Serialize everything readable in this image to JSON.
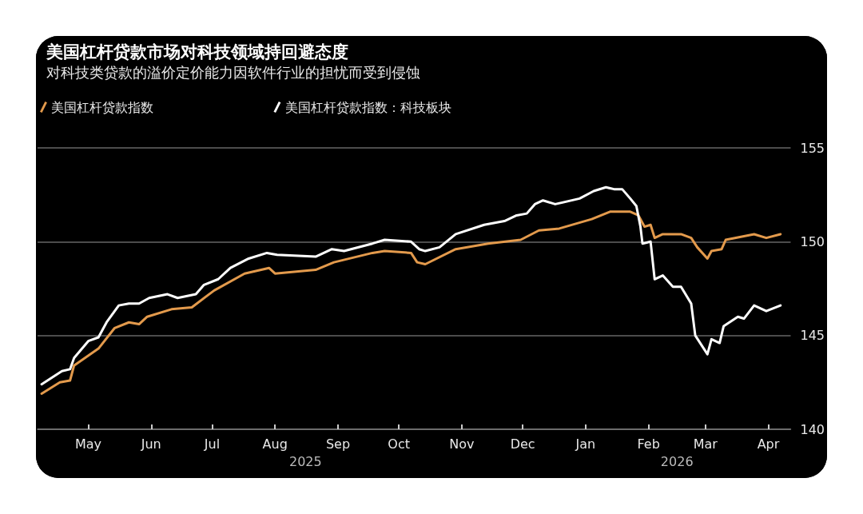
{
  "chart_data": {
    "type": "line",
    "title": "美国杠杆贷款市场对科技领域持回避态度",
    "subtitle": "对科技类贷款的溢价定价能力因软件行业的担忧而受到侵蚀",
    "series": [
      {
        "name": "美国杠杆贷款指数",
        "color": "#e39a4c",
        "x": [
          "2025-04-08",
          "2025-04-17",
          "2025-04-22",
          "2025-04-24",
          "2025-05-06",
          "2025-05-14",
          "2025-05-21",
          "2025-05-26",
          "2025-05-30",
          "2025-06-11",
          "2025-06-21",
          "2025-07-02",
          "2025-07-17",
          "2025-07-29",
          "2025-08-01",
          "2025-08-21",
          "2025-08-30",
          "2025-09-18",
          "2025-09-24",
          "2025-10-07",
          "2025-10-10",
          "2025-10-14",
          "2025-10-29",
          "2025-11-14",
          "2025-11-30",
          "2025-12-09",
          "2025-12-19",
          "2026-01-04",
          "2026-01-13",
          "2026-01-23",
          "2026-01-27",
          "2026-01-30",
          "2026-02-02",
          "2026-02-04",
          "2026-02-08",
          "2026-02-17",
          "2026-02-22",
          "2026-02-25",
          "2026-03-02",
          "2026-03-04",
          "2026-03-09",
          "2026-03-11",
          "2026-03-25",
          "2026-03-31",
          "2026-04-07"
        ],
        "values": [
          141.9,
          142.5,
          142.6,
          143.4,
          144.3,
          145.4,
          145.7,
          145.6,
          146.0,
          146.4,
          146.5,
          147.4,
          148.3,
          148.6,
          148.3,
          148.5,
          148.9,
          149.4,
          149.5,
          149.4,
          148.9,
          148.8,
          149.6,
          149.9,
          150.1,
          150.6,
          150.7,
          151.2,
          151.6,
          151.6,
          151.4,
          150.8,
          150.9,
          150.2,
          150.4,
          150.4,
          150.2,
          149.7,
          149.1,
          149.5,
          149.6,
          150.1,
          150.4,
          150.2,
          150.4
        ]
      },
      {
        "name": "美国杠杆贷款指数：科技板块",
        "color": "#ffffff",
        "x": [
          "2025-04-08",
          "2025-04-18",
          "2025-04-22",
          "2025-04-24",
          "2025-05-01",
          "2025-05-06",
          "2025-05-10",
          "2025-05-16",
          "2025-05-21",
          "2025-05-26",
          "2025-05-31",
          "2025-06-09",
          "2025-06-14",
          "2025-06-23",
          "2025-06-27",
          "2025-07-04",
          "2025-07-10",
          "2025-07-19",
          "2025-07-28",
          "2025-08-02",
          "2025-08-21",
          "2025-08-29",
          "2025-09-04",
          "2025-09-18",
          "2025-09-24",
          "2025-10-07",
          "2025-10-11",
          "2025-10-14",
          "2025-10-21",
          "2025-10-29",
          "2025-11-12",
          "2025-11-22",
          "2025-11-28",
          "2025-12-03",
          "2025-12-07",
          "2025-12-11",
          "2025-12-17",
          "2025-12-29",
          "2026-01-05",
          "2026-01-11",
          "2026-01-15",
          "2026-01-19",
          "2026-01-23",
          "2026-01-26",
          "2026-01-28",
          "2026-01-29",
          "2026-02-02",
          "2026-02-04",
          "2026-02-08",
          "2026-02-13",
          "2026-02-17",
          "2026-02-22",
          "2026-02-24",
          "2026-03-02",
          "2026-03-04",
          "2026-03-08",
          "2026-03-10",
          "2026-03-17",
          "2026-03-20",
          "2026-03-25",
          "2026-03-31",
          "2026-04-07"
        ],
        "values": [
          142.4,
          143.1,
          143.2,
          143.8,
          144.7,
          144.9,
          145.7,
          146.6,
          146.7,
          146.7,
          147.0,
          147.2,
          147.0,
          147.2,
          147.7,
          148.0,
          148.6,
          149.1,
          149.4,
          149.3,
          149.2,
          149.6,
          149.5,
          149.9,
          150.1,
          150.0,
          149.6,
          149.5,
          149.7,
          150.4,
          150.9,
          151.1,
          151.4,
          151.5,
          152.0,
          152.2,
          152.0,
          152.3,
          152.7,
          152.9,
          152.8,
          152.8,
          152.3,
          151.9,
          150.8,
          149.9,
          150.0,
          148.0,
          148.2,
          147.6,
          147.6,
          146.7,
          145.0,
          144.0,
          144.8,
          144.6,
          145.5,
          146.0,
          145.9,
          146.6,
          146.3,
          146.6
        ]
      }
    ],
    "xlim": [
      "2025-04-06",
      "2026-04-12"
    ],
    "xticks": [
      {
        "value": "2025-05-01",
        "label": "May"
      },
      {
        "value": "2025-06-01",
        "label": "Jun"
      },
      {
        "value": "2025-07-01",
        "label": "Jul"
      },
      {
        "value": "2025-08-01",
        "label": "Aug"
      },
      {
        "value": "2025-09-01",
        "label": "Sep"
      },
      {
        "value": "2025-10-01",
        "label": "Oct"
      },
      {
        "value": "2025-11-01",
        "label": "Nov"
      },
      {
        "value": "2025-12-01",
        "label": "Dec"
      },
      {
        "value": "2026-01-01",
        "label": "Jan"
      },
      {
        "value": "2026-02-01",
        "label": "Feb"
      },
      {
        "value": "2026-03-01",
        "label": "Mar"
      },
      {
        "value": "2026-04-01",
        "label": "Apr"
      }
    ],
    "ylim": [
      140,
      155
    ],
    "yticks": [
      140,
      145,
      150,
      155
    ],
    "annotations": [
      "2025",
      "2026"
    ],
    "grid": "y",
    "legend": "top left",
    "marker": "none",
    "line_style": "solid"
  }
}
